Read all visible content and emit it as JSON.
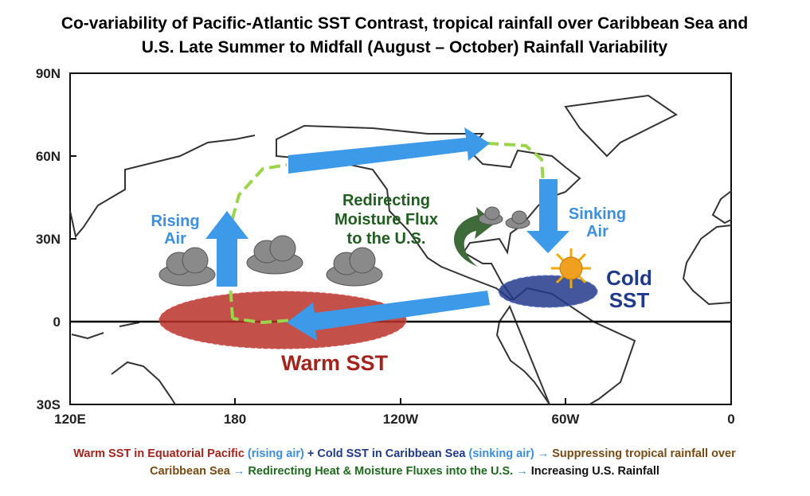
{
  "header": {
    "title_lines": [
      "Co-variability of Pacific-Atlantic SST Contrast, tropical rainfall over Caribbean Sea and",
      "U.S. Late Summer to Midfall (August – October) Rainfall Variability"
    ]
  },
  "map": {
    "lat_labels": [
      "90N",
      "60N",
      "30N",
      "0",
      "30S"
    ],
    "lon_labels": [
      "120E",
      "180",
      "120W",
      "60W",
      "0"
    ],
    "annotations": {
      "rising": [
        "Rising",
        "Air"
      ],
      "redirect": [
        "Redirecting",
        "Moisture Flux",
        "to the U.S."
      ],
      "sinking": [
        "Sinking",
        "Air"
      ],
      "cold": [
        "Cold",
        "SST"
      ],
      "warm": "Warm SST"
    }
  },
  "caption": {
    "lines": [
      [
        {
          "text": "Warm SST in Equatorial Pacific ",
          "color": "#a4231c"
        },
        {
          "text": "(rising air) ",
          "color": "#3a8ee0"
        },
        {
          "text": "+ ",
          "color": "#1f3a8a"
        },
        {
          "text": "Cold SST in Caribbean Sea ",
          "color": "#1f3a8a"
        },
        {
          "text": "(sinking air) ",
          "color": "#3a8ee0"
        },
        {
          "text": "→ ",
          "color": "#3a8ee0"
        },
        {
          "text": "Suppressing tropical rainfall over",
          "color": "#7a4a12"
        }
      ],
      [
        {
          "text": "Caribbean Sea ",
          "color": "#7a4a12"
        },
        {
          "text": "→ ",
          "color": "#3a8ee0"
        },
        {
          "text": "Redirecting Heat & Moisture Fluxes into the U.S. ",
          "color": "#1e6b1e"
        },
        {
          "text": "→ ",
          "color": "#3a8ee0"
        },
        {
          "text": "Increasing U.S. Rainfall",
          "color": "#111111"
        }
      ]
    ]
  }
}
